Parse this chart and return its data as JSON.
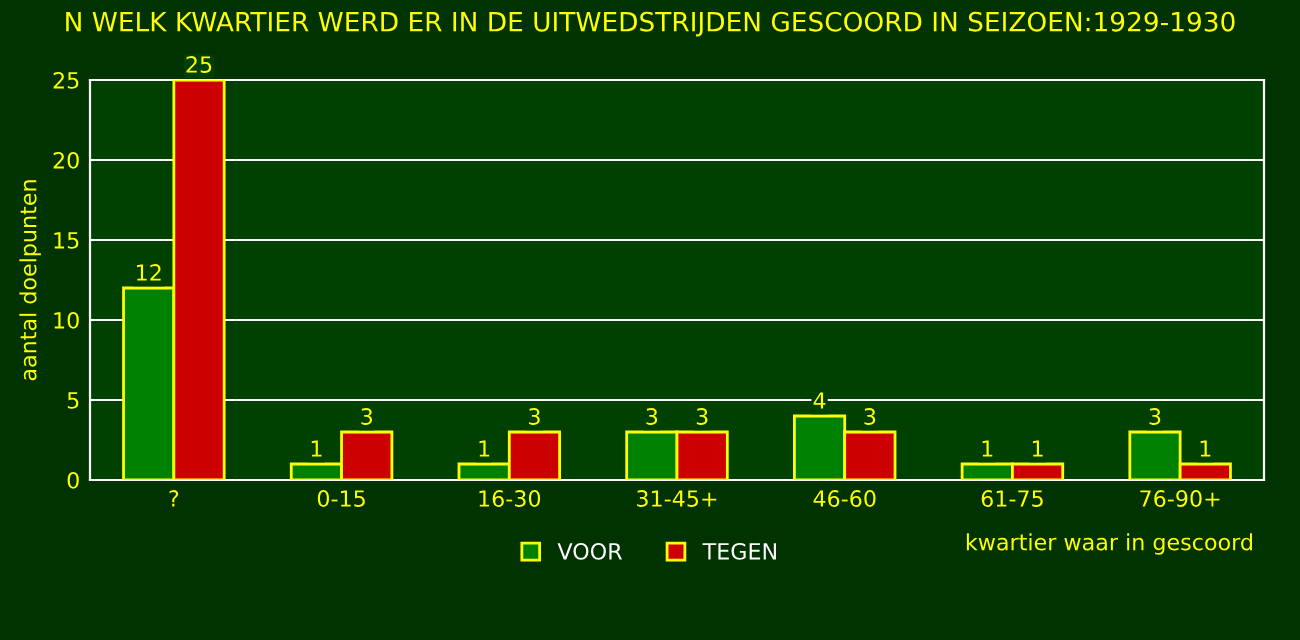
{
  "chart_data": {
    "type": "bar",
    "title": "N WELK KWARTIER WERD ER IN DE UITWEDSTRIJDEN GESCOORD IN SEIZOEN:1929-1930",
    "xlabel": "kwartier waar in gescoord",
    "ylabel": "aantal doelpunten",
    "categories": [
      "?",
      "0-15",
      "16-30",
      "31-45+",
      "46-60",
      "61-75",
      "76-90+"
    ],
    "series": [
      {
        "name": "VOOR",
        "color": "#008000",
        "values": [
          12,
          1,
          1,
          3,
          4,
          1,
          3
        ]
      },
      {
        "name": "TEGEN",
        "color": "#cc0000",
        "values": [
          25,
          3,
          3,
          3,
          3,
          1,
          1
        ]
      }
    ],
    "ylim": [
      0,
      25
    ],
    "yticks": [
      0,
      5,
      10,
      15,
      20,
      25
    ],
    "grid": "y",
    "legend": "bottom",
    "data_labels": true
  }
}
